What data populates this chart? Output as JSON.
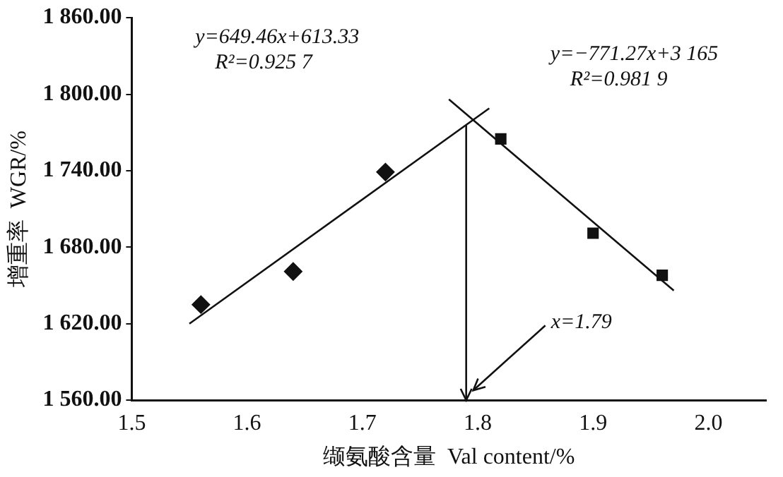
{
  "chart_data": {
    "type": "scatter",
    "xlabel": "缬氨酸含量  Val content/%",
    "ylabel": "增重率  WGR/%",
    "xlim": [
      1.5,
      2.05
    ],
    "xticks": [
      1.5,
      1.6,
      1.7,
      1.8,
      1.9,
      {
        "value": 2,
        "label": "2.0"
      }
    ],
    "ylim": [
      1560,
      1860
    ],
    "yticks": [
      {
        "value": 1560,
        "label": "1 560.00"
      },
      {
        "value": 1620,
        "label": "1 620.00"
      },
      {
        "value": 1680,
        "label": "1 680.00"
      },
      {
        "value": 1740,
        "label": "1 740.00"
      },
      {
        "value": 1800,
        "label": "1 800.00"
      },
      {
        "value": 1860,
        "label": "1 860.00"
      }
    ],
    "grid": false,
    "legend": false,
    "series": [
      {
        "color": "#111111",
        "marker": "diamond",
        "x": [
          1.56,
          1.64,
          1.72
        ],
        "values": [
          1635,
          1661,
          1739
        ]
      },
      {
        "color": "#111111",
        "marker": "square",
        "x": [
          1.82,
          1.9,
          1.96
        ],
        "values": [
          1765,
          1691,
          1658
        ]
      },
      {
        "type": "line",
        "color": "#111111",
        "marker": "none",
        "x": [
          1.55,
          1.81
        ],
        "values": [
          1620,
          1789
        ]
      },
      {
        "type": "line",
        "color": "#111111",
        "marker": "none",
        "x": [
          1.775,
          1.97
        ],
        "values": [
          1796,
          1646
        ]
      }
    ],
    "ref_lines": [
      {
        "axis": "x",
        "value": 1.79,
        "color": "#111111"
      }
    ],
    "annotations": [
      "y=649.46x+613.33\nR²=0.925 7",
      "y=−771.27x+3 165\nR²=0.981 9",
      {
        "text": "x=1.79",
        "x": 1.79,
        "y": 1560
      }
    ]
  }
}
